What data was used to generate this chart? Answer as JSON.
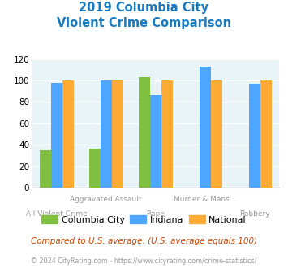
{
  "title_line1": "2019 Columbia City",
  "title_line2": "Violent Crime Comparison",
  "columbia_city": [
    35,
    36,
    103,
    null,
    null
  ],
  "indiana": [
    98,
    100,
    86,
    113,
    97
  ],
  "national": [
    100,
    100,
    100,
    100,
    100
  ],
  "bar_colors": {
    "columbia_city": "#80c040",
    "indiana": "#4da6ff",
    "national": "#ffaa33"
  },
  "ylim": [
    0,
    120
  ],
  "yticks": [
    0,
    20,
    40,
    60,
    80,
    100,
    120
  ],
  "background_color": "#e8f4f8",
  "title_color": "#1a7abf",
  "footer_text": "Compared to U.S. average. (U.S. average equals 100)",
  "copyright_text": "© 2024 CityRating.com - https://www.cityrating.com/crime-statistics/",
  "legend_labels": [
    "Columbia City",
    "Indiana",
    "National"
  ],
  "line1_labels": [
    "",
    "Aggravated Assault",
    "",
    "Murder & Mans...",
    ""
  ],
  "line2_labels": [
    "All Violent Crime",
    "",
    "Rape",
    "",
    "Robbery"
  ]
}
